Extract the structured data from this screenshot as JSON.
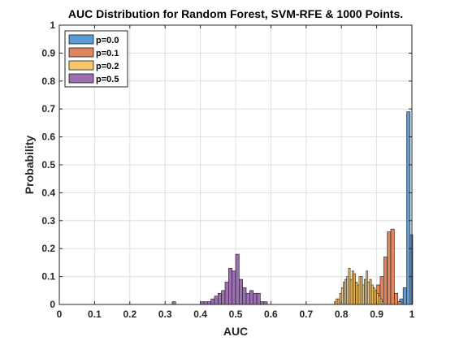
{
  "chart_data": {
    "type": "bar",
    "subtype": "histogram",
    "title": "AUC Distribution for Random Forest, SVM-RFE & 1000 Points.",
    "xlabel": "AUC",
    "ylabel": "Probability",
    "xlim": [
      0,
      1
    ],
    "ylim": [
      0,
      1
    ],
    "xticks": [
      "0",
      "0.1",
      "0.2",
      "0.3",
      "0.4",
      "0.5",
      "0.6",
      "0.7",
      "0.8",
      "0.9",
      "1"
    ],
    "yticks": [
      "0",
      "0.1",
      "0.2",
      "0.3",
      "0.4",
      "0.5",
      "0.6",
      "0.7",
      "0.8",
      "0.9",
      "1"
    ],
    "grid": true,
    "legend_position": "top-left",
    "series": [
      {
        "name": "p=0.0",
        "color": "#5b9bd5",
        "bins": [
          {
            "x0": 0.955,
            "x1": 0.965,
            "y": 0.01
          },
          {
            "x0": 0.965,
            "x1": 0.975,
            "y": 0.02
          },
          {
            "x0": 0.975,
            "x1": 0.985,
            "y": 0.06
          },
          {
            "x0": 0.985,
            "x1": 0.995,
            "y": 0.69
          },
          {
            "x0": 0.995,
            "x1": 1.005,
            "y": 0.25
          }
        ]
      },
      {
        "name": "p=0.1",
        "color": "#e0865e",
        "bins": [
          {
            "x0": 0.88,
            "x1": 0.89,
            "y": 0.04
          },
          {
            "x0": 0.89,
            "x1": 0.9,
            "y": 0.05
          },
          {
            "x0": 0.9,
            "x1": 0.91,
            "y": 0.07
          },
          {
            "x0": 0.91,
            "x1": 0.92,
            "y": 0.1
          },
          {
            "x0": 0.92,
            "x1": 0.93,
            "y": 0.17
          },
          {
            "x0": 0.93,
            "x1": 0.94,
            "y": 0.26
          },
          {
            "x0": 0.94,
            "x1": 0.95,
            "y": 0.27
          },
          {
            "x0": 0.95,
            "x1": 0.96,
            "y": 0.04
          },
          {
            "x0": 0.96,
            "x1": 0.97,
            "y": 0.01
          }
        ]
      },
      {
        "name": "p=0.2",
        "color": "#f5c76a",
        "bins": [
          {
            "x0": 0.78,
            "x1": 0.785,
            "y": 0.01
          },
          {
            "x0": 0.785,
            "x1": 0.79,
            "y": 0.02
          },
          {
            "x0": 0.79,
            "x1": 0.795,
            "y": 0.02
          },
          {
            "x0": 0.795,
            "x1": 0.8,
            "y": 0.04
          },
          {
            "x0": 0.8,
            "x1": 0.805,
            "y": 0.06
          },
          {
            "x0": 0.805,
            "x1": 0.81,
            "y": 0.08
          },
          {
            "x0": 0.81,
            "x1": 0.815,
            "y": 0.09
          },
          {
            "x0": 0.815,
            "x1": 0.82,
            "y": 0.1
          },
          {
            "x0": 0.82,
            "x1": 0.825,
            "y": 0.13
          },
          {
            "x0": 0.825,
            "x1": 0.83,
            "y": 0.09
          },
          {
            "x0": 0.83,
            "x1": 0.835,
            "y": 0.12
          },
          {
            "x0": 0.835,
            "x1": 0.84,
            "y": 0.11
          },
          {
            "x0": 0.84,
            "x1": 0.845,
            "y": 0.08
          },
          {
            "x0": 0.845,
            "x1": 0.85,
            "y": 0.07
          },
          {
            "x0": 0.85,
            "x1": 0.855,
            "y": 0.1
          },
          {
            "x0": 0.855,
            "x1": 0.86,
            "y": 0.1
          },
          {
            "x0": 0.86,
            "x1": 0.865,
            "y": 0.07
          },
          {
            "x0": 0.865,
            "x1": 0.87,
            "y": 0.09
          },
          {
            "x0": 0.87,
            "x1": 0.875,
            "y": 0.12
          },
          {
            "x0": 0.875,
            "x1": 0.88,
            "y": 0.08
          },
          {
            "x0": 0.88,
            "x1": 0.885,
            "y": 0.09
          },
          {
            "x0": 0.885,
            "x1": 0.89,
            "y": 0.07
          },
          {
            "x0": 0.89,
            "x1": 0.895,
            "y": 0.06
          },
          {
            "x0": 0.895,
            "x1": 0.9,
            "y": 0.05
          },
          {
            "x0": 0.9,
            "x1": 0.905,
            "y": 0.04
          },
          {
            "x0": 0.905,
            "x1": 0.91,
            "y": 0.03
          },
          {
            "x0": 0.91,
            "x1": 0.915,
            "y": 0.02
          },
          {
            "x0": 0.915,
            "x1": 0.92,
            "y": 0.01
          }
        ]
      },
      {
        "name": "p=0.5",
        "color": "#9c6fb0",
        "bins": [
          {
            "x0": 0.32,
            "x1": 0.33,
            "y": 0.01
          },
          {
            "x0": 0.4,
            "x1": 0.41,
            "y": 0.01
          },
          {
            "x0": 0.41,
            "x1": 0.42,
            "y": 0.01
          },
          {
            "x0": 0.42,
            "x1": 0.43,
            "y": 0.01
          },
          {
            "x0": 0.43,
            "x1": 0.44,
            "y": 0.02
          },
          {
            "x0": 0.44,
            "x1": 0.45,
            "y": 0.03
          },
          {
            "x0": 0.45,
            "x1": 0.46,
            "y": 0.04
          },
          {
            "x0": 0.46,
            "x1": 0.47,
            "y": 0.05
          },
          {
            "x0": 0.47,
            "x1": 0.48,
            "y": 0.08
          },
          {
            "x0": 0.48,
            "x1": 0.49,
            "y": 0.13
          },
          {
            "x0": 0.49,
            "x1": 0.5,
            "y": 0.12
          },
          {
            "x0": 0.5,
            "x1": 0.51,
            "y": 0.18
          },
          {
            "x0": 0.51,
            "x1": 0.52,
            "y": 0.09
          },
          {
            "x0": 0.52,
            "x1": 0.53,
            "y": 0.06
          },
          {
            "x0": 0.53,
            "x1": 0.54,
            "y": 0.04
          },
          {
            "x0": 0.54,
            "x1": 0.55,
            "y": 0.05
          },
          {
            "x0": 0.55,
            "x1": 0.56,
            "y": 0.04
          },
          {
            "x0": 0.56,
            "x1": 0.57,
            "y": 0.04
          },
          {
            "x0": 0.57,
            "x1": 0.58,
            "y": 0.01
          },
          {
            "x0": 0.58,
            "x1": 0.59,
            "y": 0.01
          }
        ]
      }
    ]
  }
}
